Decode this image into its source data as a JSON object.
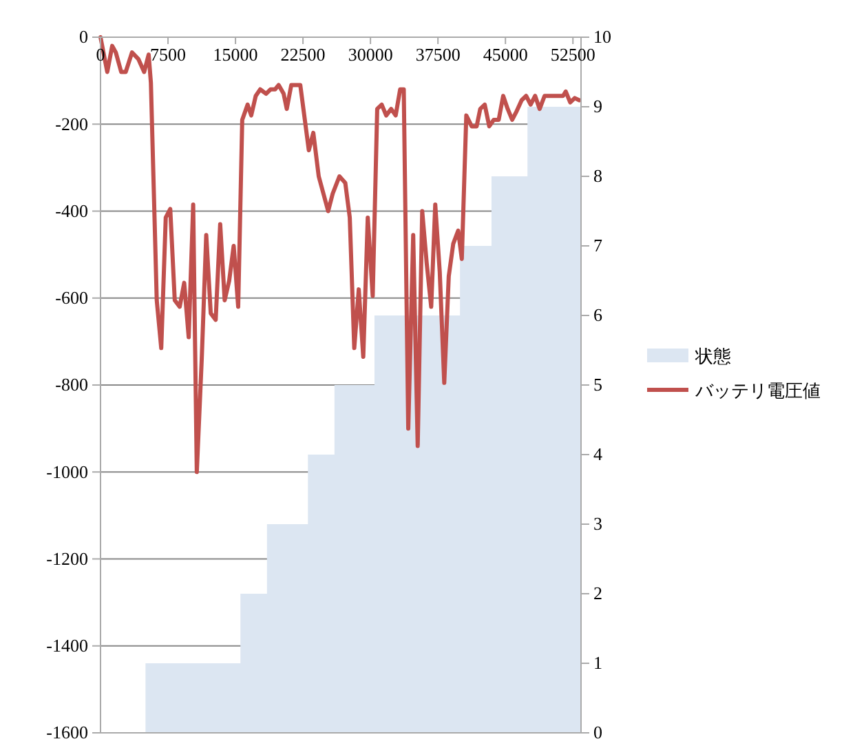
{
  "chart_data": {
    "type": "line",
    "xlim": [
      0,
      53400
    ],
    "xticks": [
      0,
      7500,
      15000,
      22500,
      30000,
      37500,
      45000,
      52500
    ],
    "ylim": [
      -1600,
      0
    ],
    "yticks": [
      -1600,
      -1400,
      -1200,
      -1000,
      -800,
      -600,
      -400,
      -200,
      0
    ],
    "y2lim": [
      0,
      10
    ],
    "y2ticks": [
      0,
      1,
      2,
      3,
      4,
      5,
      6,
      7,
      8,
      9,
      10
    ],
    "grid": "y",
    "legend": "right",
    "series": [
      {
        "name": "状態",
        "type": "area",
        "axis": "y2",
        "color": "#dce6f2",
        "x": [
          5000,
          5000,
          15550,
          15550,
          18500,
          18500,
          23050,
          23050,
          26000,
          26000,
          30450,
          30450,
          39950,
          39950,
          43450,
          43450,
          47450,
          47450,
          53400
        ],
        "values": [
          0,
          1,
          1,
          2,
          2,
          3,
          3,
          4,
          4,
          5,
          5,
          6,
          6,
          7,
          7,
          8,
          8,
          9,
          9
        ]
      },
      {
        "name": "バッテリ電圧値",
        "color": "#c0504d",
        "x": [
          0,
          750,
          1300,
          1700,
          2300,
          2800,
          3500,
          4200,
          4850,
          5350,
          5600,
          6250,
          6750,
          7250,
          7750,
          8250,
          8800,
          9300,
          9800,
          10300,
          10700,
          11250,
          11750,
          12250,
          12800,
          13300,
          13800,
          14300,
          14800,
          15300,
          15750,
          16350,
          16750,
          17250,
          17750,
          18400,
          18900,
          19400,
          19800,
          20350,
          20700,
          21200,
          22200,
          23150,
          23650,
          24250,
          25300,
          25800,
          26550,
          27200,
          27700,
          28200,
          28700,
          29200,
          29700,
          30250,
          30750,
          31250,
          31750,
          32300,
          32800,
          33300,
          33700,
          34200,
          34750,
          35250,
          35750,
          36250,
          36750,
          37200,
          37700,
          38200,
          38700,
          39200,
          39750,
          40150,
          40650,
          41250,
          41800,
          42200,
          42700,
          43200,
          43700,
          44250,
          44750,
          45250,
          45750,
          46250,
          46800,
          47300,
          47800,
          48300,
          48800,
          49350,
          51400,
          51700,
          52200,
          52700,
          53200
        ],
        "values": [
          0,
          -80,
          -20,
          -35,
          -80,
          -80,
          -35,
          -50,
          -80,
          -40,
          -105,
          -605,
          -715,
          -415,
          -395,
          -605,
          -620,
          -565,
          -690,
          -385,
          -1000,
          -740,
          -455,
          -635,
          -650,
          -430,
          -605,
          -560,
          -480,
          -620,
          -190,
          -155,
          -180,
          -135,
          -120,
          -130,
          -120,
          -120,
          -110,
          -130,
          -165,
          -110,
          -110,
          -260,
          -220,
          -320,
          -400,
          -360,
          -320,
          -335,
          -415,
          -715,
          -580,
          -735,
          -415,
          -595,
          -165,
          -155,
          -180,
          -165,
          -180,
          -120,
          -120,
          -900,
          -455,
          -940,
          -400,
          -520,
          -620,
          -385,
          -540,
          -795,
          -550,
          -475,
          -445,
          -510,
          -180,
          -205,
          -205,
          -165,
          -155,
          -205,
          -190,
          -190,
          -135,
          -165,
          -190,
          -170,
          -145,
          -135,
          -155,
          -135,
          -165,
          -135,
          -135,
          -125,
          -150,
          -140,
          -145
        ]
      }
    ]
  }
}
